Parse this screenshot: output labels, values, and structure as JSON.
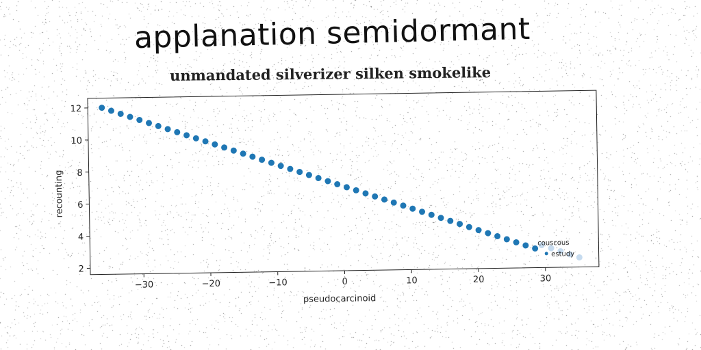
{
  "title": "applanation semidormant",
  "subtitle": "unmandated silverizer silken smokelike",
  "colors": {
    "points": "#1f77b4",
    "faded_points": "#c6dbef",
    "axis": "#222222"
  },
  "chart_data": {
    "type": "scatter",
    "xlabel": "pseudocarcinoid",
    "ylabel": "recounting",
    "xlim": [
      -38,
      38
    ],
    "ylim": [
      1.6,
      12.6
    ],
    "xticks": [
      -30,
      -20,
      -10,
      0,
      10,
      20,
      30
    ],
    "xtick_labels": [
      "−30",
      "−20",
      "−10",
      "0",
      "10",
      "20",
      "30"
    ],
    "yticks": [
      2,
      4,
      6,
      8,
      10,
      12
    ],
    "ytick_labels": [
      "2",
      "4",
      "6",
      "8",
      "10",
      "12"
    ],
    "grid": false,
    "series": [
      {
        "x": [
          -35.9,
          -34.5,
          -33.1,
          -31.7,
          -30.3,
          -28.9,
          -27.5,
          -26.1,
          -24.7,
          -23.3,
          -21.9,
          -20.5,
          -19.1,
          -17.7,
          -16.3,
          -14.9,
          -13.5,
          -12.1,
          -10.7,
          -9.3,
          -7.9,
          -6.5,
          -5.1,
          -3.7,
          -2.3,
          -0.9,
          0.5,
          1.9,
          3.3,
          4.7,
          6.1,
          7.5,
          8.9,
          10.3,
          11.7,
          13.1,
          14.5,
          15.9,
          17.3,
          18.7,
          20.1,
          21.5,
          22.9,
          24.3,
          25.7,
          27.1,
          28.5
        ],
        "y": [
          12.0,
          11.8,
          11.6,
          11.4,
          11.2,
          11.0,
          10.8,
          10.6,
          10.4,
          10.2,
          10.0,
          9.8,
          9.6,
          9.4,
          9.2,
          9.0,
          8.8,
          8.6,
          8.4,
          8.2,
          8.0,
          7.8,
          7.6,
          7.4,
          7.2,
          7.0,
          6.8,
          6.6,
          6.4,
          6.2,
          6.0,
          5.8,
          5.6,
          5.4,
          5.2,
          5.0,
          4.8,
          4.6,
          4.4,
          4.2,
          4.0,
          3.8,
          3.6,
          3.4,
          3.2,
          3.0,
          2.8
        ]
      }
    ],
    "faded_points": {
      "x": [
        29.5,
        30.9,
        32.3,
        33.7,
        35.1
      ],
      "y": [
        3.0,
        2.8,
        2.6,
        2.4,
        2.2
      ]
    },
    "annotations": [
      {
        "text": "couscous",
        "x": 29.9,
        "y": 3.0
      },
      {
        "text": "estudy",
        "x": 30.9,
        "y": 2.3
      }
    ]
  }
}
